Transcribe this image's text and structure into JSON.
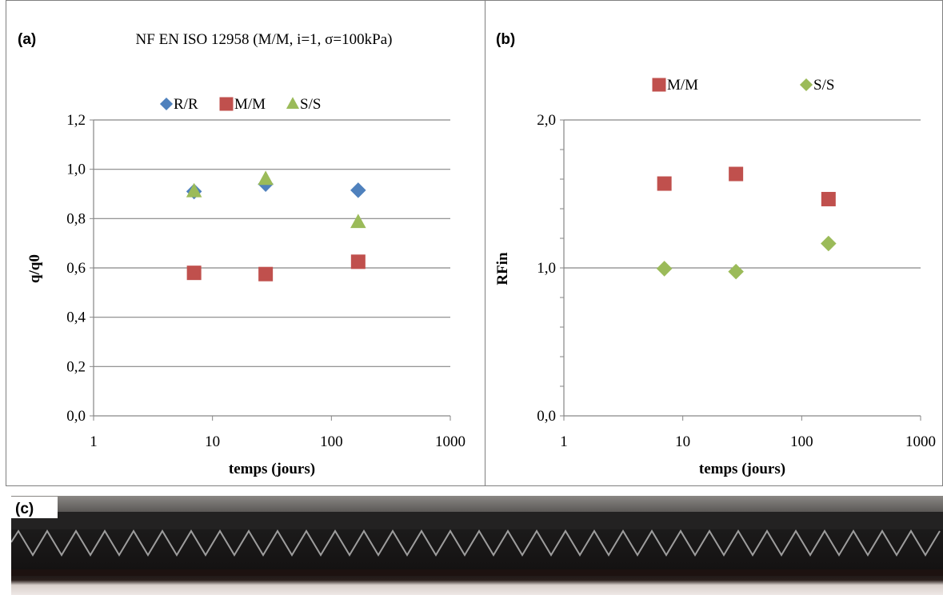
{
  "panels": {
    "a": {
      "tag": "(a)"
    },
    "b": {
      "tag": "(b)"
    },
    "c": {
      "tag": "(c)"
    }
  },
  "chart_data": [
    {
      "type": "scatter",
      "title": "NF EN ISO 12958 (M/M, i=1, σ=100kPa)",
      "xlabel": "temps (jours)",
      "ylabel": "q/q0",
      "xscale": "log",
      "xlim": [
        1,
        1000
      ],
      "ylim": [
        0,
        1.2
      ],
      "xticks": [
        "1",
        "10",
        "100",
        "1000"
      ],
      "yticks": [
        "0,0",
        "0,2",
        "0,4",
        "0,6",
        "0,8",
        "1,0",
        "1,2"
      ],
      "grid": "horizontal",
      "legend_position": "top",
      "series": [
        {
          "name": "R/R",
          "marker": "diamond",
          "color": "#4f81bd",
          "x": [
            7,
            28,
            168
          ],
          "y": [
            0.91,
            0.94,
            0.915
          ]
        },
        {
          "name": "M/M",
          "marker": "square",
          "color": "#c0504d",
          "x": [
            7,
            28,
            168
          ],
          "y": [
            0.58,
            0.575,
            0.625
          ]
        },
        {
          "name": "S/S",
          "marker": "triangle",
          "color": "#9bbb59",
          "x": [
            7,
            28,
            168
          ],
          "y": [
            0.91,
            0.96,
            0.785
          ]
        }
      ]
    },
    {
      "type": "scatter",
      "title": "",
      "xlabel": "temps (jours)",
      "ylabel": "RFin",
      "xscale": "log",
      "xlim": [
        1,
        1000
      ],
      "ylim": [
        0,
        2.0
      ],
      "xticks": [
        "1",
        "10",
        "100",
        "1000"
      ],
      "yticks": [
        "0,0",
        "1,0",
        "2,0"
      ],
      "grid": "horizontal",
      "legend_position": "top",
      "series": [
        {
          "name": "M/M",
          "marker": "square",
          "color": "#c0504d",
          "x": [
            7,
            28,
            168
          ],
          "y": [
            1.57,
            1.635,
            1.465
          ]
        },
        {
          "name": "S/S",
          "marker": "diamond",
          "color": "#9bbb59",
          "x": [
            7,
            28,
            168
          ],
          "y": [
            0.995,
            0.975,
            1.165
          ]
        }
      ]
    }
  ]
}
